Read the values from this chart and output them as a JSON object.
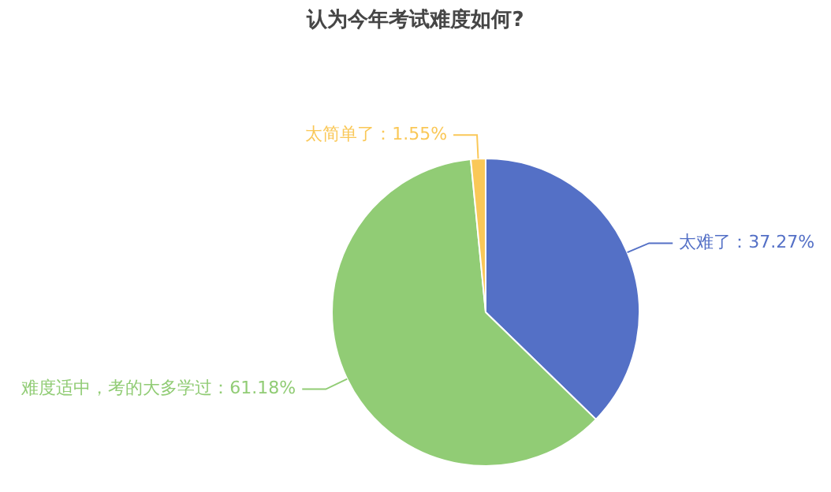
{
  "chart_data": {
    "type": "pie",
    "title": "认为今年考试难度如何?",
    "categories": [
      "太难了",
      "难度适中，考的大多学过",
      "太简单了"
    ],
    "values": [
      37.27,
      61.18,
      1.55
    ],
    "colors": [
      "#5470c6",
      "#91cc75",
      "#fac858"
    ],
    "value_labels": [
      "37.27%",
      "61.18%",
      "1.55%"
    ],
    "legend": false
  }
}
